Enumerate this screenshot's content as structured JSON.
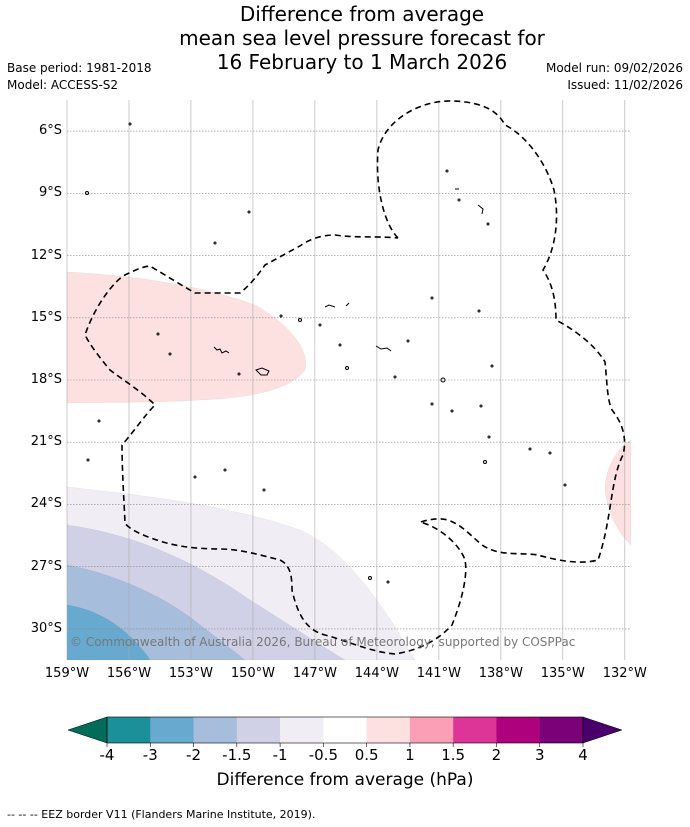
{
  "title": {
    "line1": "Difference from average",
    "line2": "mean sea level pressure forecast for",
    "line3": "16 February to 1 March 2026"
  },
  "meta": {
    "base_period": "Base period: 1981-2018",
    "model": "Model: ACCESS-S2",
    "model_run": "Model run: 09/02/2026",
    "issued": "Issued: 11/02/2026"
  },
  "map": {
    "lon_range": [
      -159,
      -131.7
    ],
    "lat_range": [
      -31.5,
      -4.5
    ],
    "lat_ticks": [
      {
        "value": -6,
        "label": "6°S"
      },
      {
        "value": -9,
        "label": "9°S"
      },
      {
        "value": -12,
        "label": "12°S"
      },
      {
        "value": -15,
        "label": "15°S"
      },
      {
        "value": -18,
        "label": "18°S"
      },
      {
        "value": -21,
        "label": "21°S"
      },
      {
        "value": -24,
        "label": "24°S"
      },
      {
        "value": -27,
        "label": "27°S"
      },
      {
        "value": -30,
        "label": "30°S"
      }
    ],
    "lon_ticks": [
      {
        "value": -159,
        "label": "159°W"
      },
      {
        "value": -156,
        "label": "156°W"
      },
      {
        "value": -153,
        "label": "153°W"
      },
      {
        "value": -150,
        "label": "150°W"
      },
      {
        "value": -147,
        "label": "147°W"
      },
      {
        "value": -144,
        "label": "144°W"
      },
      {
        "value": -141,
        "label": "141°W"
      },
      {
        "value": -138,
        "label": "138°W"
      },
      {
        "value": -135,
        "label": "135°W"
      },
      {
        "value": -132,
        "label": "132°W"
      }
    ],
    "copyright": "© Commonwealth of Australia 2026, Bureau of Meteorology, supported by COSPPac",
    "colors": {
      "pos_0_5_1": "#fde0e0",
      "neg_0_5_1": "#f1edf4",
      "neg_1_1_5": "#d0d1e6",
      "neg_1_5_2": "#a6bddb",
      "neg_2_3": "#67a9cf",
      "neg_3_4": "#1c9099"
    }
  },
  "colorbar": {
    "ticks": [
      "-4",
      "-3",
      "-2",
      "-1.5",
      "-1",
      "-0.5",
      "0.5",
      "1",
      "1.5",
      "2",
      "3",
      "4"
    ],
    "colors": [
      "#1c9099",
      "#67a9cf",
      "#a6bddb",
      "#d0d1e6",
      "#f1edf4",
      "#ffffff",
      "#fde0e0",
      "#fa9fb5",
      "#dd3497",
      "#ae017e",
      "#7a0177"
    ],
    "under_color": "#016c59",
    "over_color": "#49006a",
    "label": "Difference from average (hPa)"
  },
  "footer": "-- -- -- EEZ border V11 (Flanders Marine Institute, 2019)."
}
